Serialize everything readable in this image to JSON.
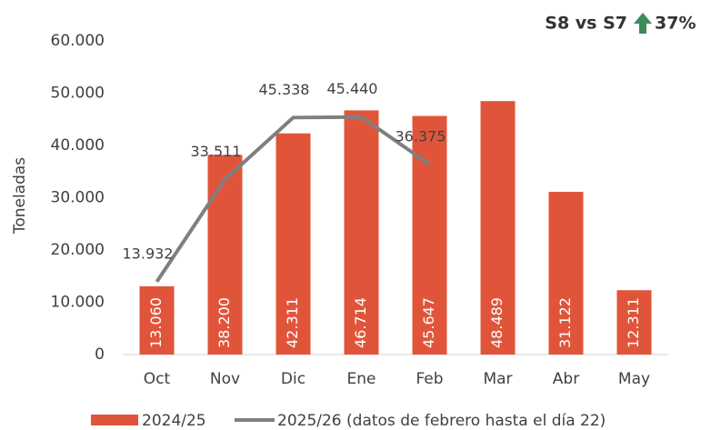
{
  "chart_data": {
    "type": "bar",
    "y_label": "Toneladas",
    "annotation": "S8 vs S7",
    "annotation_value": "37%",
    "categories": [
      "Oct",
      "Nov",
      "Dic",
      "Ene",
      "Feb",
      "Mar",
      "Abr",
      "May"
    ],
    "series": [
      {
        "name": "2024/25",
        "type": "bar",
        "color": "#e0553a",
        "values": [
          13060,
          38200,
          42311,
          46714,
          45647,
          48489,
          31122,
          12311
        ],
        "value_labels": [
          "13.060",
          "38.200",
          "42.311",
          "46.714",
          "45.647",
          "48.489",
          "31.122",
          "12.311"
        ]
      },
      {
        "name": "2025/26 (datos de febrero hasta el día 22)",
        "type": "line",
        "color": "#7f7f7f",
        "values": [
          13932,
          33511,
          45338,
          45440,
          36375,
          null,
          null,
          null
        ],
        "value_labels": [
          "13.932",
          "33.511",
          "45.338",
          "45.440",
          "36.375",
          null,
          null,
          null
        ]
      }
    ],
    "ylim": [
      0,
      60000
    ],
    "yticks": [
      0,
      {
        "value": 10000,
        "label": "10.000"
      },
      {
        "value": 20000,
        "label": "20.000"
      },
      {
        "value": 30000,
        "label": "30.000"
      },
      {
        "value": 40000,
        "label": "40.000"
      },
      {
        "value": 50000,
        "label": "50.000"
      },
      {
        "value": 60000,
        "label": "60.000"
      }
    ],
    "grid": false,
    "legend": "bottom"
  }
}
